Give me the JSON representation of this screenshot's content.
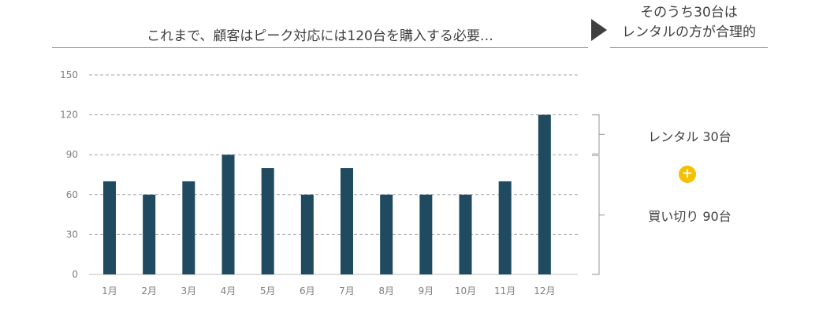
{
  "header": {
    "title": "これまで、顧客はピーク対応には120台を購入する必要…",
    "conclusion_line1": "そのうち30台は",
    "conclusion_line2": "レンタルの方が合理的"
  },
  "breakdown": {
    "rental_label": "レンタル 30台",
    "plus_symbol": "+",
    "purchase_label": "買い切り 90台"
  },
  "chart_data": {
    "type": "bar",
    "categories": [
      "1月",
      "2月",
      "3月",
      "4月",
      "5月",
      "6月",
      "7月",
      "8月",
      "9月",
      "10月",
      "11月",
      "12月"
    ],
    "values": [
      70,
      60,
      70,
      90,
      80,
      60,
      80,
      60,
      60,
      60,
      70,
      120
    ],
    "ylim": [
      0,
      150
    ],
    "yticks": [
      0,
      30,
      60,
      90,
      120,
      150
    ],
    "grid": true,
    "bar_color": "#1f4a5f",
    "title": "",
    "xlabel": "",
    "ylabel": ""
  }
}
